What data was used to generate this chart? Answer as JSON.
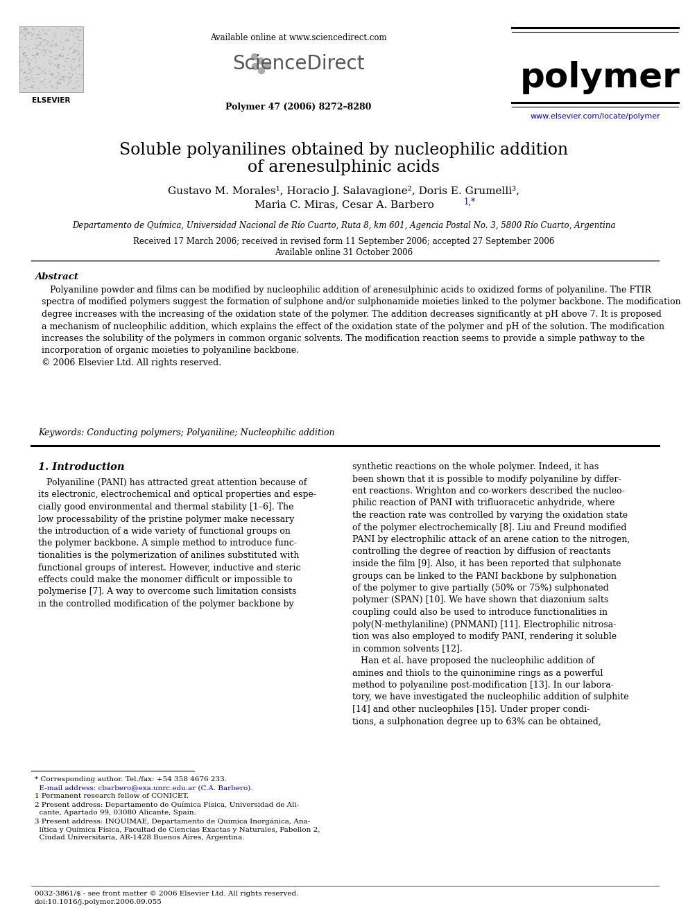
{
  "bg_color": "#ffffff",
  "avail_online": "Available online at www.sciencedirect.com",
  "sciencedirect_label": "ScienceDirect",
  "journal_name": "polymer",
  "journal_info": "Polymer 47 (2006) 8272–8280",
  "journal_url": "www.elsevier.com/locate/polymer",
  "elsevier_label": "ELSEVIER",
  "title_line1": "Soluble polyanilines obtained by nucleophilic addition",
  "title_line2": "of arenesulphinic acids",
  "author_line1": "Gustavo M. Morales¹, Horacio J. Salavagione², Doris E. Grumelli³,",
  "author_line2a": "Maria C. Miras, Cesar A. Barbero",
  "author_line2b": "1,*",
  "affil": "Departamento de Química, Universidad Nacional de Río Cuarto, Ruta 8, km 601, Agencia Postal No. 3, 5800 Río Cuarto, Argentina",
  "received": "Received 17 March 2006; received in revised form 11 September 2006; accepted 27 September 2006",
  "avail_online2": "Available online 31 October 2006",
  "abstract_head": "Abstract",
  "abstract_body": "   Polyaniline powder and films can be modified by nucleophilic addition of arenesulphinic acids to oxidized forms of polyaniline. The FTIR\nspectra of modified polymers suggest the formation of sulphone and/or sulphonamide moieties linked to the polymer backbone. The modification\ndegree increases with the increasing of the oxidation state of the polymer. The addition decreases significantly at pH above 7. It is proposed\na mechanism of nucleophilic addition, which explains the effect of the oxidation state of the polymer and pH of the solution. The modification\nincreases the solubility of the polymers in common organic solvents. The modification reaction seems to provide a simple pathway to the\nincorporation of organic moieties to polyaniline backbone.\n© 2006 Elsevier Ltd. All rights reserved.",
  "keywords_line": "Keywords: Conducting polymers; Polyaniline; Nucleophilic addition",
  "intro_head": "1. Introduction",
  "intro_col1": "   Polyaniline (PANI) has attracted great attention because of\nits electronic, electrochemical and optical properties and espe-\ncially good environmental and thermal stability [1–6]. The\nlow processability of the pristine polymer make necessary\nthe introduction of a wide variety of functional groups on\nthe polymer backbone. A simple method to introduce func-\ntionalities is the polymerization of anilines substituted with\nfunctional groups of interest. However, inductive and steric\neffects could make the monomer difficult or impossible to\npolymerise [7]. A way to overcome such limitation consists\nin the controlled modification of the polymer backbone by",
  "intro_col2": "synthetic reactions on the whole polymer. Indeed, it has\nbeen shown that it is possible to modify polyaniline by differ-\nent reactions. Wrighton and co-workers described the nucleo-\nphilic reaction of PANI with trifluoracetic anhydride, where\nthe reaction rate was controlled by varying the oxidation state\nof the polymer electrochemically [8]. Liu and Freund modified\nPANI by electrophilic attack of an arene cation to the nitrogen,\ncontrolling the degree of reaction by diffusion of reactants\ninside the film [9]. Also, it has been reported that sulphonate\ngroups can be linked to the PANI backbone by sulphonation\nof the polymer to give partially (50% or 75%) sulphonated\npolymer (SPAN) [10]. We have shown that diazonium salts\ncoupling could also be used to introduce functionalities in\npoly(N-methylaniline) (PNMANI) [11]. Electrophilic nitrosa-\ntion was also employed to modify PANI, rendering it soluble\nin common solvents [12].\n   Han et al. have proposed the nucleophilic addition of\namines and thiols to the quinonimine rings as a powerful\nmethod to polyaniline post-modification [13]. In our labora-\ntory, we have investigated the nucleophilic addition of sulphite\n[14] and other nucleophiles [15]. Under proper condi-\ntions, a sulphonation degree up to 63% can be obtained,",
  "fn_star": "* Corresponding author. Tel./fax: +54 358 4676 233.",
  "fn_email": "  E-mail address: cbarbero@exa.unrc.edu.ar (C.A. Barbero).",
  "fn1": "1 Permanent research fellow of CONICET.",
  "fn2a": "2 Present address: Departamento de Química Física, Universidad de Ali-",
  "fn2b": "  cante, Apartado 99, 03080 Alicante, Spain.",
  "fn3a": "3 Present address: INQUIMAE, Departamento de Química Inorgánica, Ana-",
  "fn3b": "  lítica y Química Física, Facultad de Ciencias Exactas y Naturales, Pabellon 2,",
  "fn3c": "  Ciudad Universitaria, AR-1428 Buenos Aires, Argentina.",
  "copyright_text": "0032-3861/$ - see front matter © 2006 Elsevier Ltd. All rights reserved.",
  "doi_text": "doi:10.1016/j.polymer.2006.09.055"
}
